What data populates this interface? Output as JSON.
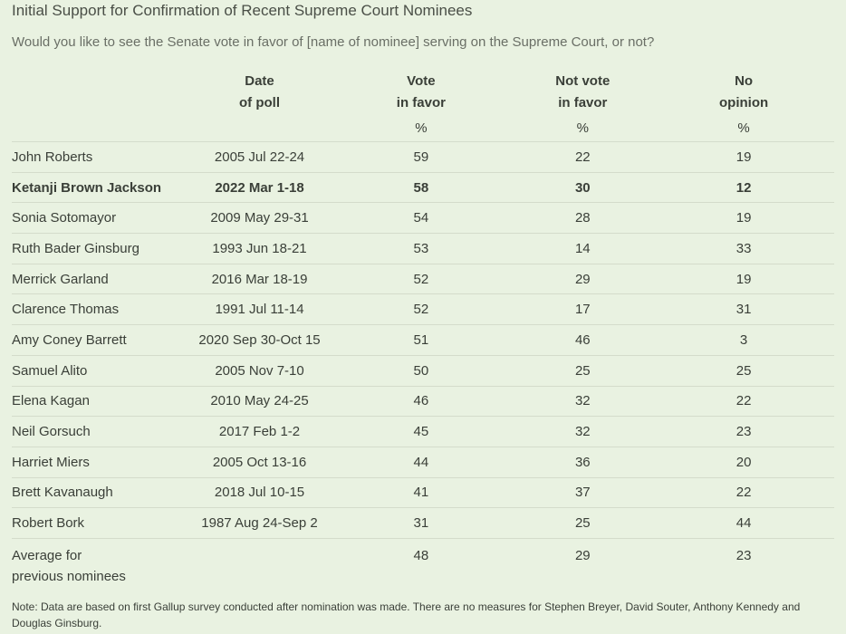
{
  "title": "Initial Support for Confirmation of Recent Supreme Court Nominees",
  "subtitle": "Would you like to see the Senate vote in favor of [name of nominee] serving on the Supreme Court, or not?",
  "headers": {
    "date_line1": "Date",
    "date_line2": "of poll",
    "vote_line1": "Vote",
    "vote_line2": "in favor",
    "not_line1": "Not vote",
    "not_line2": "in favor",
    "no_line1": "No",
    "no_line2": "opinion",
    "pct": "%"
  },
  "rows": [
    {
      "name": "John Roberts",
      "date": "2005 Jul 22-24",
      "vote": "59",
      "not": "22",
      "no": "19"
    },
    {
      "name": "Ketanji Brown Jackson",
      "date": "2022 Mar 1-18",
      "vote": "58",
      "not": "30",
      "no": "12"
    },
    {
      "name": "Sonia Sotomayor",
      "date": "2009 May 29-31",
      "vote": "54",
      "not": "28",
      "no": "19"
    },
    {
      "name": "Ruth Bader Ginsburg",
      "date": "1993 Jun 18-21",
      "vote": "53",
      "not": "14",
      "no": "33"
    },
    {
      "name": "Merrick Garland",
      "date": "2016 Mar 18-19",
      "vote": "52",
      "not": "29",
      "no": "19"
    },
    {
      "name": "Clarence Thomas",
      "date": "1991 Jul 11-14",
      "vote": "52",
      "not": "17",
      "no": "31"
    },
    {
      "name": "Amy Coney Barrett",
      "date": "2020 Sep 30-Oct 15",
      "vote": "51",
      "not": "46",
      "no": "3"
    },
    {
      "name": "Samuel Alito",
      "date": "2005 Nov 7-10",
      "vote": "50",
      "not": "25",
      "no": "25"
    },
    {
      "name": "Elena Kagan",
      "date": "2010 May 24-25",
      "vote": "46",
      "not": "32",
      "no": "22"
    },
    {
      "name": "Neil Gorsuch",
      "date": "2017 Feb 1-2",
      "vote": "45",
      "not": "32",
      "no": "23"
    },
    {
      "name": "Harriet Miers",
      "date": "2005 Oct 13-16",
      "vote": "44",
      "not": "36",
      "no": "20"
    },
    {
      "name": "Brett Kavanaugh",
      "date": "2018 Jul 10-15",
      "vote": "41",
      "not": "37",
      "no": "22"
    },
    {
      "name": "Robert Bork",
      "date": "1987 Aug 24-Sep 2",
      "vote": "31",
      "not": "25",
      "no": "44"
    }
  ],
  "average": {
    "name_line1": "Average for",
    "name_line2": "previous nominees",
    "vote": "48",
    "not": "29",
    "no": "23"
  },
  "note": "Note: Data are based on first Gallup survey conducted after nomination was made. There are no measures for Stephen Breyer, David Souter, Anthony Kennedy and Douglas Ginsburg."
}
